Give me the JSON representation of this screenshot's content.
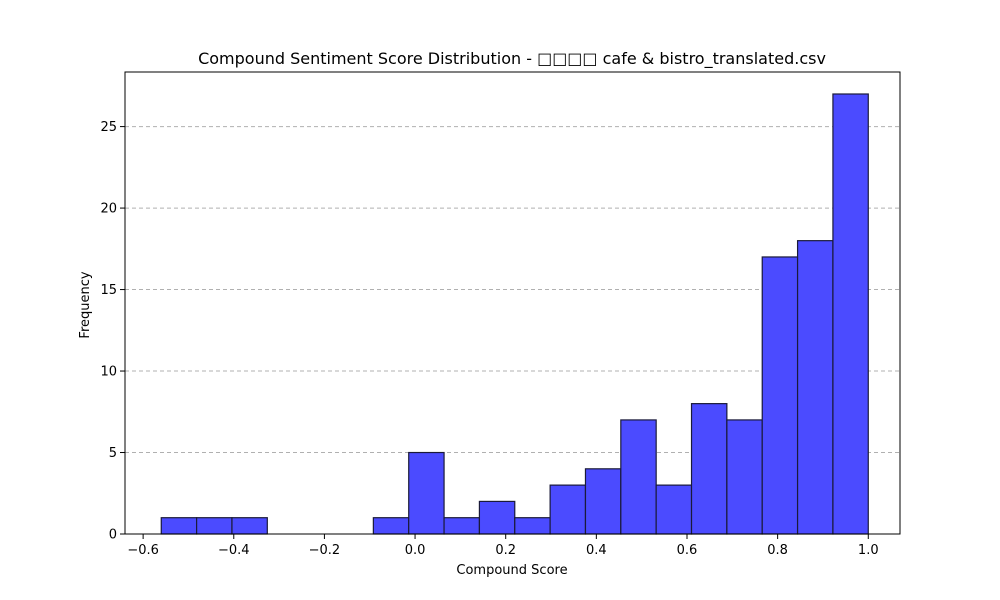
{
  "chart_data": {
    "type": "bar",
    "title": "Compound Sentiment Score Distribution - □□□□ cafe & bistro_translated.csv",
    "xlabel": "Compound Score",
    "ylabel": "Frequency",
    "xlim": [
      -0.64,
      1.07
    ],
    "ylim": [
      0,
      28.35
    ],
    "xticks": [
      -0.6,
      -0.4,
      -0.2,
      0.0,
      0.2,
      0.4,
      0.6,
      0.8,
      1.0
    ],
    "xtick_labels": [
      "−0.6",
      "−0.4",
      "−0.2",
      "0.0",
      "0.2",
      "0.4",
      "0.6",
      "0.8",
      "1.0"
    ],
    "yticks": [
      0,
      5,
      10,
      15,
      20,
      25
    ],
    "ytick_labels": [
      "0",
      "5",
      "10",
      "15",
      "20",
      "25"
    ],
    "grid": "y-dashed",
    "bar_color": "#4b4bff",
    "edge_color": "#1a1a3a",
    "bins": [
      {
        "start": -0.56,
        "end": -0.482,
        "count": 1
      },
      {
        "start": -0.482,
        "end": -0.404,
        "count": 1
      },
      {
        "start": -0.404,
        "end": -0.326,
        "count": 1
      },
      {
        "start": -0.326,
        "end": -0.248,
        "count": 0
      },
      {
        "start": -0.248,
        "end": -0.17,
        "count": 0
      },
      {
        "start": -0.17,
        "end": -0.092,
        "count": 0
      },
      {
        "start": -0.092,
        "end": -0.014,
        "count": 1
      },
      {
        "start": -0.014,
        "end": 0.064,
        "count": 5
      },
      {
        "start": 0.064,
        "end": 0.142,
        "count": 1
      },
      {
        "start": 0.142,
        "end": 0.22,
        "count": 2
      },
      {
        "start": 0.22,
        "end": 0.298,
        "count": 1
      },
      {
        "start": 0.298,
        "end": 0.376,
        "count": 3
      },
      {
        "start": 0.376,
        "end": 0.454,
        "count": 4
      },
      {
        "start": 0.454,
        "end": 0.532,
        "count": 7
      },
      {
        "start": 0.532,
        "end": 0.61,
        "count": 3
      },
      {
        "start": 0.61,
        "end": 0.688,
        "count": 8
      },
      {
        "start": 0.688,
        "end": 0.766,
        "count": 7
      },
      {
        "start": 0.766,
        "end": 0.844,
        "count": 17
      },
      {
        "start": 0.844,
        "end": 0.922,
        "count": 18
      },
      {
        "start": 0.922,
        "end": 1.0,
        "count": 27
      }
    ]
  }
}
